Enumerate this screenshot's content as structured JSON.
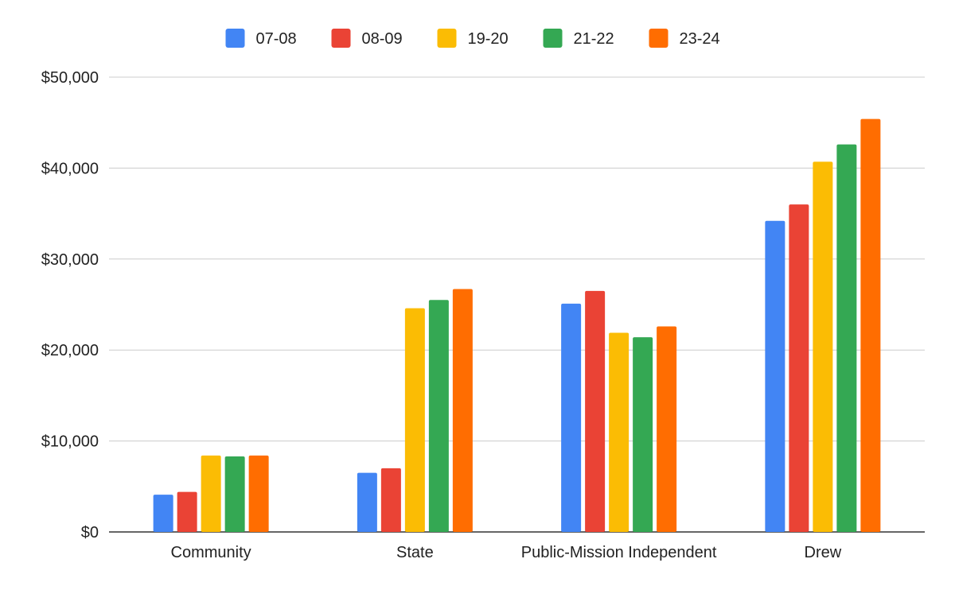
{
  "chart_data": {
    "type": "bar",
    "categories": [
      "Community",
      "State",
      "Public-Mission Independent",
      "Drew"
    ],
    "series": [
      {
        "name": "07-08",
        "color": "#4285F4",
        "values": [
          4100,
          6500,
          25100,
          34200
        ]
      },
      {
        "name": "08-09",
        "color": "#EA4335",
        "values": [
          4400,
          7000,
          26500,
          36000
        ]
      },
      {
        "name": "19-20",
        "color": "#FBBC04",
        "values": [
          8400,
          24600,
          21900,
          40700
        ]
      },
      {
        "name": "21-22",
        "color": "#34A853",
        "values": [
          8300,
          25500,
          21400,
          42600
        ]
      },
      {
        "name": "23-24",
        "color": "#FF6D01",
        "values": [
          8400,
          26700,
          22600,
          45400
        ]
      }
    ],
    "y_ticks": [
      "$0",
      "$10,000",
      "$20,000",
      "$30,000",
      "$40,000",
      "$50,000"
    ],
    "ylim": [
      0,
      50000
    ],
    "grid": true,
    "legend_position": "top-center",
    "title": "",
    "xlabel": "",
    "ylabel": ""
  }
}
